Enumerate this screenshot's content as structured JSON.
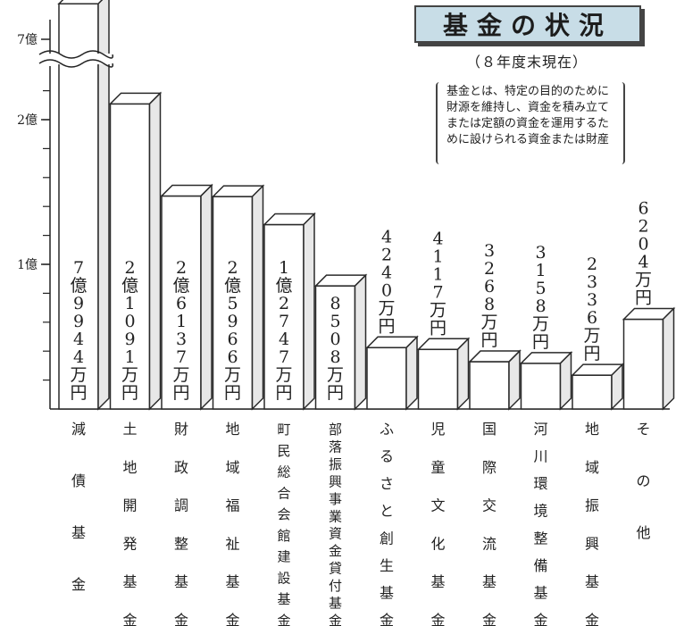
{
  "title": "基金の状況",
  "subtitle": "（８年度末現在）",
  "note": "基金とは、特定の目的のために財源を維持し、資金を積み立てまたは定額の資金を運用するために設けられる資金または財産",
  "chart_data": {
    "type": "bar",
    "axis_break": true,
    "yticks": [
      {
        "label": "1億",
        "value": 100000000
      },
      {
        "label": "2億",
        "value": 200000000
      },
      {
        "label": "7億",
        "value": 700000000
      }
    ],
    "categories": [
      "減債基金",
      "土地開発基金",
      "財政調整基金",
      "地域福祉基金",
      "町民総合会館建設基金",
      "部落振興事業資金貸付基金",
      "ふるさと創生基金",
      "児童文化基金",
      "国際交流基金",
      "河川環境整備基金",
      "地域振興基金",
      "その他"
    ],
    "value_labels": [
      "7億9944万円",
      "2億1091万円",
      "2億6137万円",
      "2億5966万円",
      "1億2747万円",
      "8508万円",
      "4240万円",
      "4117万円",
      "3268万円",
      "3158万円",
      "2336万円",
      "6204万円"
    ],
    "values": [
      799440000,
      210910000,
      261370000,
      259660000,
      127470000,
      85080000,
      42400000,
      41170000,
      32680000,
      31580000,
      23360000,
      62040000
    ],
    "bar_fill": "#ffffff",
    "bar_stroke": "#2a2a2a",
    "title_bg": "#c8dde7"
  }
}
